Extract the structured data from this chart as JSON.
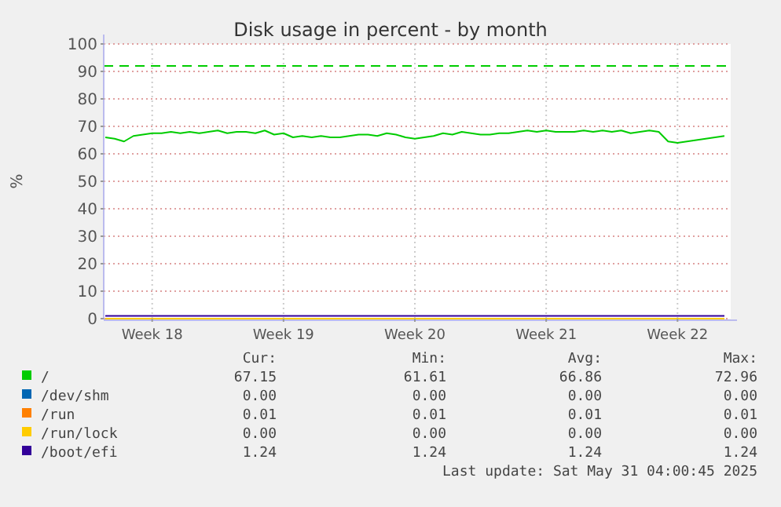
{
  "chart_data": {
    "type": "line",
    "title": "Disk usage in percent - by month",
    "ylabel": "%",
    "ylim": [
      0,
      100
    ],
    "yticks": [
      0,
      10,
      20,
      30,
      40,
      50,
      60,
      70,
      80,
      90,
      100
    ],
    "categories": [
      null,
      null,
      null,
      null,
      null,
      "Week 18",
      null,
      null,
      null,
      null,
      null,
      null,
      null,
      null,
      null,
      null,
      null,
      null,
      null,
      "Week 19",
      null,
      null,
      null,
      null,
      null,
      null,
      null,
      null,
      null,
      null,
      null,
      null,
      null,
      "Week 20",
      null,
      null,
      null,
      null,
      null,
      null,
      null,
      null,
      null,
      null,
      null,
      null,
      null,
      "Week 21",
      null,
      null,
      null,
      null,
      null,
      null,
      null,
      null,
      null,
      null,
      null,
      null,
      null,
      "Week 22",
      null,
      null,
      null,
      null,
      null
    ],
    "grid": true,
    "legend": "bottom",
    "marker": "none",
    "line_style": "solid",
    "series": [
      {
        "name": "/",
        "color": "#00cc00",
        "values": [
          66,
          65.5,
          64.5,
          66.5,
          67,
          67.5,
          67.5,
          68,
          67.5,
          68,
          67.5,
          68,
          68.5,
          67.5,
          68,
          68,
          67.5,
          68.5,
          67,
          67.5,
          66,
          66.5,
          66,
          66.5,
          66,
          66,
          66.5,
          67,
          67,
          66.5,
          67.5,
          67,
          66,
          65.5,
          66,
          66.5,
          67.5,
          67,
          68,
          67.5,
          67,
          67,
          67.5,
          67.5,
          68,
          68.5,
          68,
          68.5,
          68,
          68,
          68,
          68.5,
          68,
          68.5,
          68,
          68.5,
          67.5,
          68,
          68.5,
          68,
          64.5,
          64,
          64.5,
          65,
          65.5,
          66,
          66.5
        ]
      },
      {
        "name": "/dev/shm",
        "color": "#0066b3",
        "values": [
          null,
          null,
          null,
          null,
          null,
          null,
          null,
          null,
          null,
          null,
          null,
          null,
          null,
          null,
          null,
          null,
          null,
          null,
          null,
          null,
          null,
          null,
          null,
          null,
          null,
          null,
          null,
          null,
          null,
          null,
          null,
          null,
          null,
          null,
          null,
          null,
          null,
          null,
          null,
          null,
          null,
          null,
          null,
          null,
          null,
          null,
          null,
          null,
          null,
          null,
          null,
          null,
          null,
          null,
          null,
          null,
          null,
          null,
          null,
          null,
          null,
          null,
          null,
          null,
          null,
          null,
          null
        ]
      },
      {
        "name": "/run",
        "color": "#ff8000",
        "values": [
          null,
          null,
          null,
          null,
          null,
          null,
          null,
          null,
          null,
          null,
          null,
          null,
          null,
          null,
          null,
          null,
          null,
          null,
          null,
          null,
          null,
          null,
          null,
          null,
          null,
          null,
          null,
          null,
          null,
          null,
          null,
          null,
          null,
          null,
          null,
          null,
          null,
          null,
          null,
          null,
          null,
          null,
          null,
          null,
          null,
          null,
          null,
          null,
          null,
          null,
          null,
          null,
          null,
          null,
          null,
          null,
          null,
          null,
          null,
          null,
          null,
          null,
          null,
          null,
          null,
          null,
          null
        ]
      },
      {
        "name": "/run/lock",
        "color": "#ffcc00",
        "values": [
          0,
          0,
          0,
          0,
          0,
          0,
          0,
          0,
          0,
          0,
          0,
          0,
          0,
          0,
          0,
          0,
          0,
          0,
          0,
          0,
          0,
          0,
          0,
          0,
          0,
          0,
          0,
          0,
          0,
          0,
          0,
          0,
          0,
          0,
          0,
          0,
          0,
          0,
          0,
          0,
          0,
          0,
          0,
          0,
          0,
          0,
          0,
          0,
          0,
          0,
          0,
          0,
          0,
          0,
          0,
          0,
          0,
          0,
          0,
          0,
          0,
          0,
          0,
          0,
          0,
          0,
          0
        ]
      },
      {
        "name": "/boot/efi",
        "color": "#330099",
        "values": [
          1,
          1,
          1,
          1,
          1,
          1,
          1,
          1,
          1,
          1,
          1,
          1,
          1,
          1,
          1,
          1,
          1,
          1,
          1,
          1,
          1,
          1,
          1,
          1,
          1,
          1,
          1,
          1,
          1,
          1,
          1,
          1,
          1,
          1,
          1,
          1,
          1,
          1,
          1,
          1,
          1,
          1,
          1,
          1,
          1,
          1,
          1,
          1,
          1,
          1,
          1,
          1,
          1,
          1,
          1,
          1,
          1,
          1,
          1,
          1,
          1,
          1,
          1,
          1,
          1,
          1,
          1
        ]
      }
    ],
    "ref_lines": [
      {
        "axis": "y",
        "value": 92,
        "color": "#00cc00",
        "line_style": "dashed"
      }
    ],
    "annotations": [
      "Cur:",
      "Min:",
      "Avg:",
      "Max:",
      "67.15",
      "61.61",
      "66.86",
      "72.96",
      "0.00",
      "0.00",
      "0.00",
      "0.00",
      "0.01",
      "0.01",
      "0.01",
      "0.01",
      "0.00",
      "0.00",
      "0.00",
      "0.00",
      "1.24",
      "1.24",
      "1.24",
      "1.24",
      "Last update: Sat May 31 04:00:45 2025"
    ]
  }
}
